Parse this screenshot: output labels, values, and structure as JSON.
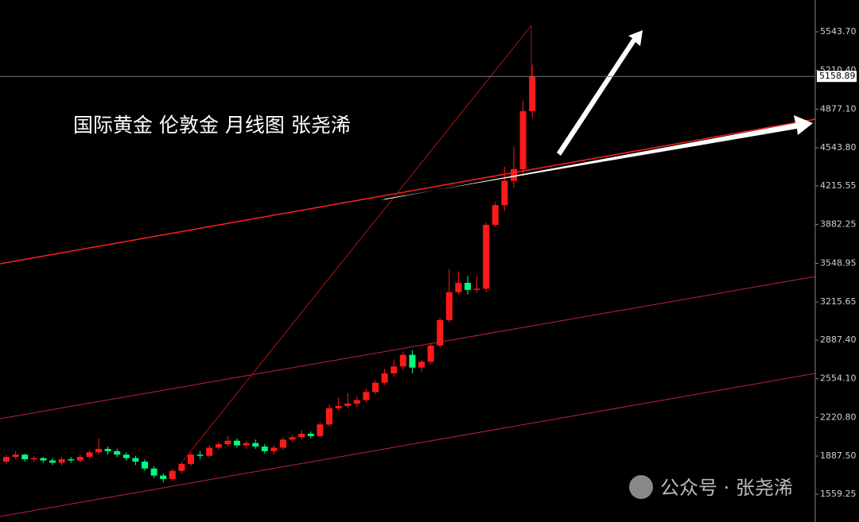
{
  "chart_data": {
    "type": "candlestick",
    "title": "国际黄金 伦敦金  月线图 张尧浠",
    "watermark": "公众号 · 张尧浠",
    "up_color": "#ff1a1a",
    "down_color": "#00ff80",
    "last_price": 5158.89,
    "ylim": [
      1319.6,
      5817.5
    ],
    "yticks": [
      {
        "value": 5543.7,
        "label": "5543.70"
      },
      {
        "value": 5210.4,
        "label": "5210.40"
      },
      {
        "value": 4877.1,
        "label": "4877.10"
      },
      {
        "value": 4543.8,
        "label": "4543.80"
      },
      4215.55,
      3882.25,
      3548.95,
      3215.65,
      {
        "value": 2887.4,
        "label": "2887.40"
      },
      {
        "value": 2554.1,
        "label": "2554.10"
      },
      {
        "value": 2220.8,
        "label": "2220.80"
      },
      {
        "value": 1887.5,
        "label": "1887.50"
      },
      1559.25
    ],
    "open": [
      1840,
      1880,
      1900,
      1860,
      1870,
      1850,
      1830,
      1860,
      1850,
      1880,
      1920,
      1950,
      1930,
      1900,
      1870,
      1840,
      1780,
      1720,
      1690,
      1760,
      1820,
      1900,
      1890,
      1960,
      1990,
      2020,
      1980,
      2000,
      1970,
      1930,
      1960,
      2030,
      2050,
      2080,
      2060,
      2160,
      2300,
      2320,
      2340,
      2370,
      2440,
      2520,
      2600,
      2660,
      2760,
      2650,
      2700,
      2840,
      3060,
      3300,
      3380,
      3320,
      3330,
      3880,
      4050,
      4260,
      4360,
      4860
    ],
    "high": [
      1900,
      1930,
      1910,
      1890,
      1880,
      1870,
      1880,
      1880,
      1900,
      1940,
      2040,
      1970,
      1950,
      1920,
      1890,
      1860,
      1800,
      1740,
      1780,
      1840,
      1920,
      1930,
      1980,
      2010,
      2060,
      2040,
      2020,
      2030,
      1990,
      1980,
      2050,
      2070,
      2110,
      2100,
      2180,
      2330,
      2390,
      2430,
      2400,
      2470,
      2540,
      2640,
      2720,
      2790,
      2800,
      2720,
      2860,
      3080,
      3500,
      3480,
      3440,
      3440,
      3900,
      4080,
      4380,
      4550,
      4950,
      5260
    ],
    "low": [
      1820,
      1860,
      1840,
      1840,
      1830,
      1810,
      1810,
      1830,
      1830,
      1860,
      1900,
      1900,
      1880,
      1850,
      1810,
      1760,
      1700,
      1660,
      1670,
      1740,
      1800,
      1860,
      1870,
      1940,
      1970,
      1960,
      1950,
      1950,
      1910,
      1900,
      1940,
      2010,
      2030,
      2040,
      2050,
      2140,
      2280,
      2300,
      2310,
      2350,
      2420,
      2500,
      2570,
      2630,
      2600,
      2610,
      2680,
      2820,
      3040,
      3280,
      3280,
      3300,
      3300,
      3860,
      4000,
      4200,
      4300,
      4800
    ],
    "close": [
      1880,
      1900,
      1860,
      1870,
      1850,
      1830,
      1860,
      1850,
      1880,
      1920,
      1950,
      1930,
      1900,
      1870,
      1840,
      1780,
      1720,
      1690,
      1760,
      1820,
      1900,
      1890,
      1960,
      1990,
      2020,
      1980,
      2000,
      1970,
      1930,
      1960,
      2030,
      2050,
      2080,
      2060,
      2160,
      2300,
      2320,
      2340,
      2370,
      2440,
      2520,
      2600,
      2660,
      2760,
      2650,
      2700,
      2840,
      3060,
      3300,
      3380,
      3320,
      3330,
      3880,
      4050,
      4260,
      4360,
      4860,
      5158.89
    ]
  }
}
